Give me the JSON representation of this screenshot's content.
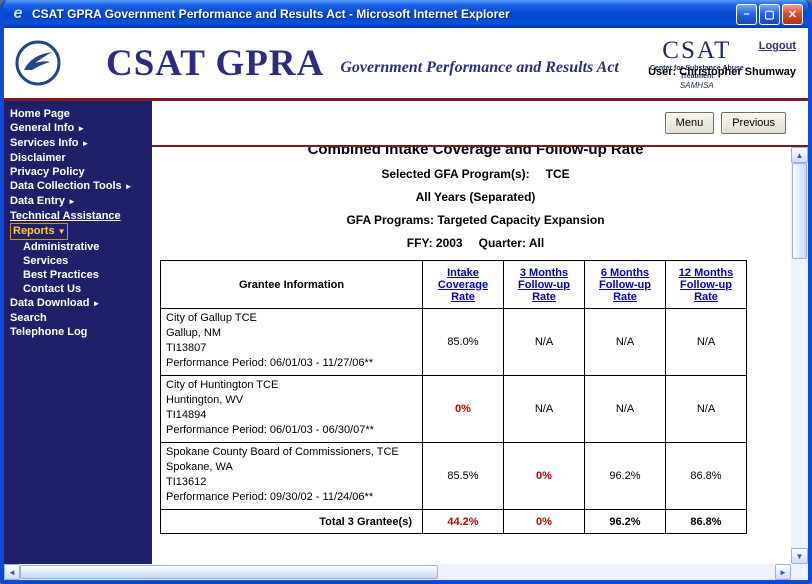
{
  "window": {
    "title": "CSAT GPRA Government Performance and Results Act - Microsoft Internet Explorer"
  },
  "icons": {
    "ie": "e",
    "minimize": "–",
    "maximize": "▢",
    "close": "✕",
    "arrow_right": "►",
    "arrow_down": "▼",
    "scroll_up": "▲",
    "scroll_down": "▼",
    "scroll_left": "◄",
    "scroll_right": "►"
  },
  "header": {
    "brand_main": "CSAT GPRA",
    "brand_sub": "Government Performance and Results Act",
    "csat_line1": "CSAT",
    "csat_line2": "Center for Substance Abuse Treatment",
    "csat_line3": "SAMHSA",
    "logout_label": "Logout",
    "user_label": "User: Christopher Shumway"
  },
  "sidebar": {
    "items": [
      {
        "label": "Home Page"
      },
      {
        "label": "General Info",
        "arrow": "right"
      },
      {
        "label": "Services Info",
        "arrow": "right"
      },
      {
        "label": "Disclaimer"
      },
      {
        "label": "Privacy Policy"
      },
      {
        "label": "Data Collection Tools",
        "arrow": "right"
      },
      {
        "label": "Data Entry",
        "arrow": "right"
      },
      {
        "label": "Technical Assistance",
        "underline": true
      },
      {
        "label": "Reports",
        "arrow": "down",
        "active": true
      },
      {
        "label": "Administrative",
        "indent": true
      },
      {
        "label": "Services",
        "indent": true
      },
      {
        "label": "Best Practices",
        "indent": true
      },
      {
        "label": "Contact Us",
        "indent": true
      },
      {
        "label": "Data Download",
        "arrow": "right"
      },
      {
        "label": "Search"
      },
      {
        "label": "Telephone Log"
      }
    ]
  },
  "toolbar": {
    "menu_label": "Menu",
    "previous_label": "Previous"
  },
  "report": {
    "title": "Combined Intake Coverage and Follow-up Rate",
    "selected_label": "Selected GFA Program(s):",
    "selected_value": "TCE",
    "line_years": "All Years (Separated)",
    "line_programs": "GFA Programs: Targeted Capacity Expansion",
    "line_ffy": "FFY: 2003",
    "line_quarter": "Quarter: All"
  },
  "table": {
    "grantee_header": "Grantee Information",
    "rate_headers": [
      "Intake Coverage Rate",
      "3 Months Follow-up Rate",
      "6 Months Follow-up Rate",
      "12 Months Follow-up Rate"
    ],
    "rows": [
      {
        "info": [
          "City of Gallup TCE",
          "Gallup, NM",
          "TI13807",
          "Performance Period: 06/01/03 - 11/27/06**"
        ],
        "values": [
          {
            "text": "85.0%"
          },
          {
            "text": "N/A"
          },
          {
            "text": "N/A"
          },
          {
            "text": "N/A"
          }
        ]
      },
      {
        "info": [
          "City of Huntington TCE",
          "Huntington, WV",
          "TI14894",
          "Performance Period: 06/01/03 - 06/30/07**"
        ],
        "values": [
          {
            "text": "0%",
            "red": true
          },
          {
            "text": "N/A"
          },
          {
            "text": "N/A"
          },
          {
            "text": "N/A"
          }
        ]
      },
      {
        "info": [
          "Spokane County Board of Commissioners, TCE",
          "Spokane, WA",
          "TI13612",
          "Performance Period: 09/30/02 - 11/24/06**"
        ],
        "values": [
          {
            "text": "85.5%"
          },
          {
            "text": "0%",
            "red": true
          },
          {
            "text": "96.2%"
          },
          {
            "text": "86.8%"
          }
        ]
      }
    ],
    "total": {
      "label": "Total 3 Grantee(s)",
      "values": [
        {
          "text": "44.2%",
          "red": true
        },
        {
          "text": "0%",
          "red": true
        },
        {
          "text": "96.2%"
        },
        {
          "text": "86.8%"
        }
      ]
    }
  },
  "colors": {
    "red_value": "#cc0000",
    "link_blue": "#0000cc",
    "sidebar_bg": "#20206a",
    "rule_maroon": "#7d1a1a",
    "active_gold": "#ffc83d",
    "titlebar_blue": "#0846cc"
  }
}
